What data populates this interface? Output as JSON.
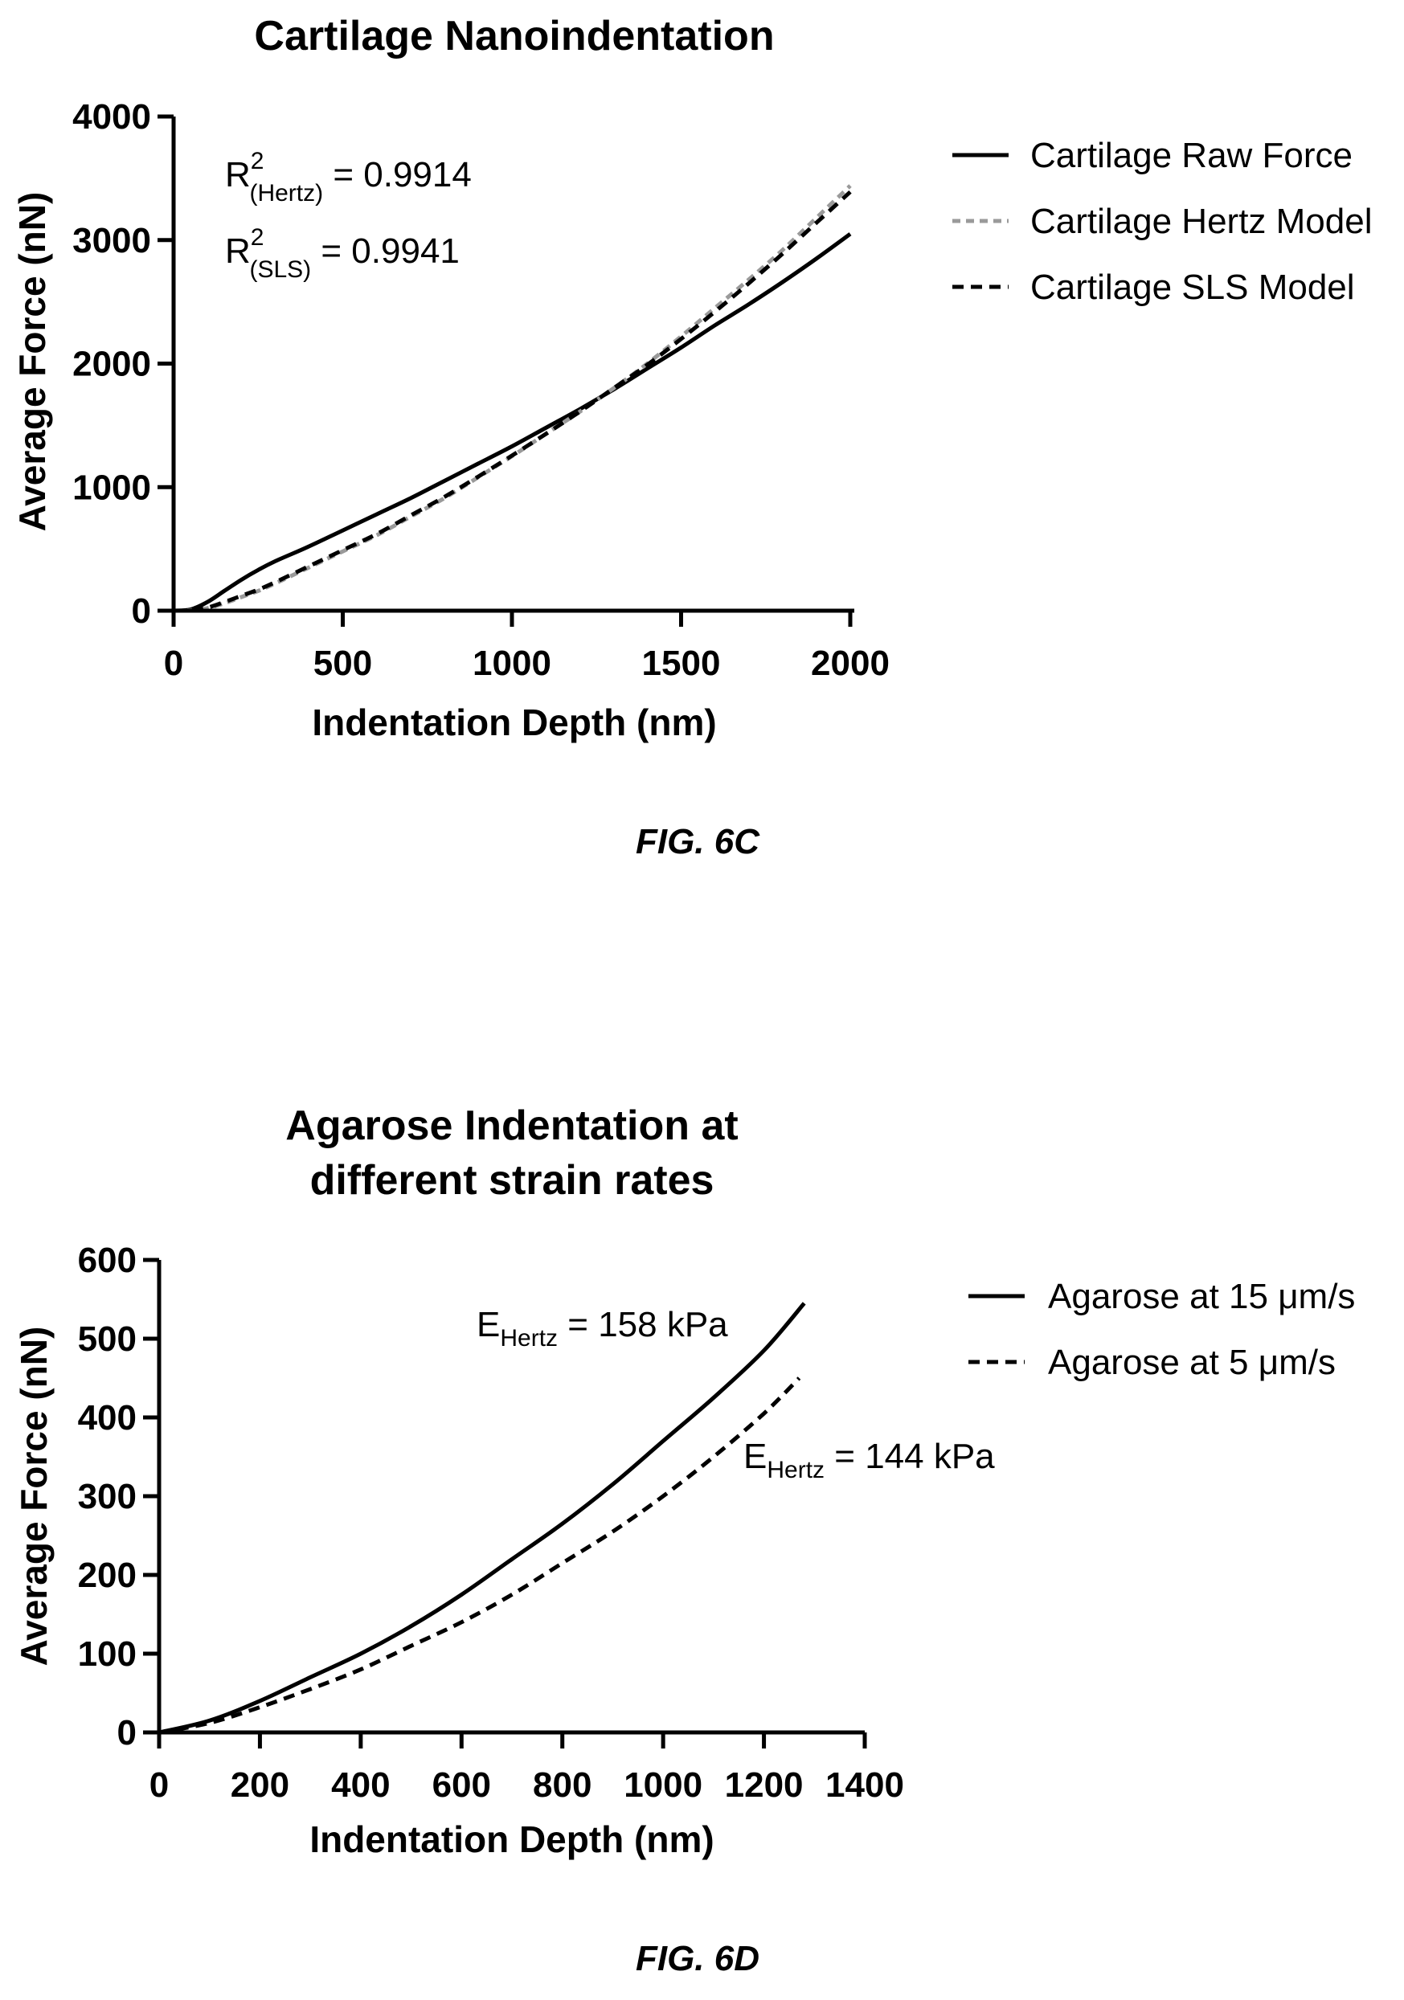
{
  "chart_data": [
    {
      "type": "line",
      "title": "Cartilage Nanoindentation",
      "xlabel": "Indentation Depth (nm)",
      "ylabel": "Average Force (nN)",
      "xlim": [
        0,
        2000
      ],
      "ylim": [
        0,
        4000
      ],
      "xticks": [
        0,
        500,
        1000,
        1500,
        2000
      ],
      "yticks": [
        0,
        1000,
        2000,
        3000,
        4000
      ],
      "grid": false,
      "legend_position": "right",
      "x": [
        0,
        50,
        100,
        150,
        200,
        250,
        300,
        400,
        500,
        600,
        700,
        800,
        900,
        1000,
        1100,
        1200,
        1300,
        1400,
        1500,
        1600,
        1700,
        1800,
        1900,
        2000
      ],
      "series": [
        {
          "name": "Cartilage Raw Force",
          "style": "solid",
          "color": "#000000",
          "values": [
            0,
            10,
            70,
            160,
            250,
            330,
            400,
            520,
            650,
            780,
            910,
            1050,
            1190,
            1330,
            1480,
            1630,
            1790,
            1960,
            2130,
            2310,
            2480,
            2660,
            2850,
            3050
          ]
        },
        {
          "name": "Cartilage Hertz Model",
          "style": "dotted",
          "color": "#9a9a9a",
          "values": [
            0,
            3,
            20,
            60,
            110,
            160,
            220,
            350,
            480,
            610,
            760,
            910,
            1080,
            1250,
            1430,
            1610,
            1800,
            2000,
            2220,
            2450,
            2680,
            2920,
            3180,
            3440
          ]
        },
        {
          "name": "Cartilage SLS Model",
          "style": "dashed",
          "color": "#000000",
          "values": [
            0,
            4,
            25,
            70,
            120,
            170,
            230,
            360,
            490,
            620,
            770,
            920,
            1085,
            1255,
            1430,
            1610,
            1800,
            1990,
            2200,
            2420,
            2650,
            2890,
            3140,
            3390
          ]
        }
      ],
      "annotations": [
        {
          "base": "R",
          "sup": "2",
          "sub": "(Hertz)",
          "text": " = 0.9914"
        },
        {
          "base": "R",
          "sup": "2",
          "sub": "(SLS)",
          "text": "  = 0.9941"
        }
      ],
      "caption": "FIG. 6C"
    },
    {
      "type": "line",
      "title": "Agarose Indentation at",
      "subtitle": "different strain rates",
      "xlabel": "Indentation Depth (nm)",
      "ylabel": "Average Force (nN)",
      "xlim": [
        0,
        1400
      ],
      "ylim": [
        0,
        600
      ],
      "xticks": [
        0,
        200,
        400,
        600,
        800,
        1000,
        1200,
        1400
      ],
      "yticks": [
        0,
        100,
        200,
        300,
        400,
        500,
        600
      ],
      "grid": false,
      "legend_position": "right",
      "series": [
        {
          "name": "Agarose at 15 μm/s",
          "style": "solid",
          "color": "#000000",
          "x": [
            0,
            100,
            200,
            300,
            400,
            500,
            600,
            700,
            800,
            900,
            1000,
            1100,
            1200,
            1280
          ],
          "values": [
            0,
            15,
            40,
            70,
            100,
            135,
            175,
            220,
            265,
            315,
            370,
            425,
            485,
            545
          ]
        },
        {
          "name": "Agarose at 5 μm/s",
          "style": "dashed",
          "color": "#000000",
          "x": [
            0,
            100,
            200,
            300,
            400,
            500,
            600,
            700,
            800,
            900,
            1000,
            1100,
            1200,
            1270
          ],
          "values": [
            0,
            12,
            32,
            55,
            80,
            110,
            140,
            175,
            215,
            255,
            300,
            350,
            405,
            450
          ]
        }
      ],
      "annotations": [
        {
          "base": "E",
          "sub": "Hertz",
          "text": " = 158 kPa"
        },
        {
          "base": "E",
          "sub": "Hertz",
          "text": " = 144 kPa"
        }
      ],
      "caption": "FIG. 6D"
    }
  ]
}
